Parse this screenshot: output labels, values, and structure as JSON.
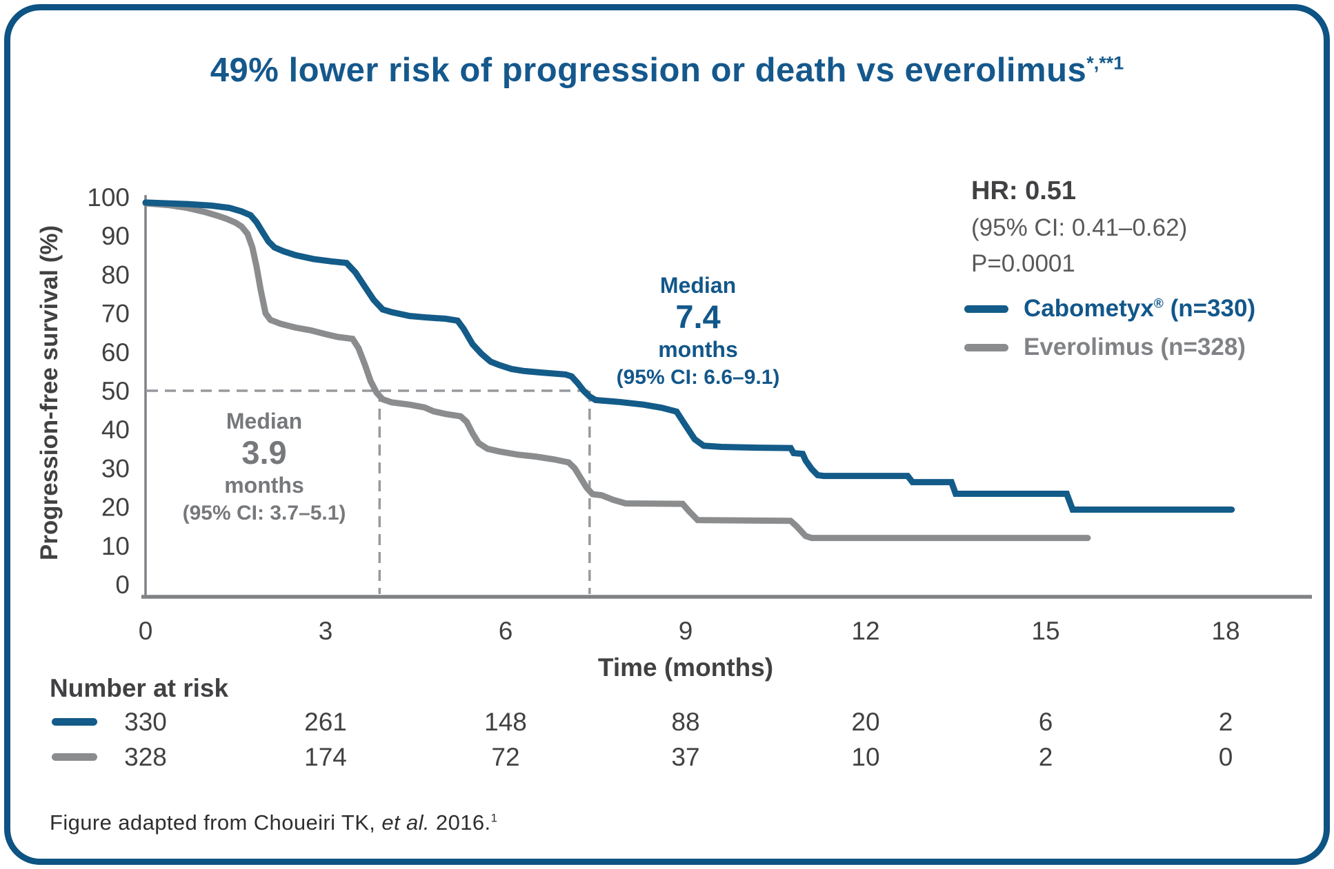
{
  "title": {
    "text": "49% lower risk of progression or death vs everolimus",
    "superscript": "*,**1"
  },
  "y_axis": {
    "label": "Progression-free survival (%)"
  },
  "x_axis": {
    "label": "Time (months)"
  },
  "stats": {
    "hr": "HR: 0.51",
    "ci": "(95% CI: 0.41–0.62)",
    "p": "P=0.0001"
  },
  "legend": {
    "cabometyx": {
      "name": "Cabometyx",
      "sup": "®",
      "suffix": " (n=330)"
    },
    "everolimus": {
      "name": "Everolimus (n=328)"
    }
  },
  "annotations": {
    "everolimus_median": {
      "line1": "Median",
      "value": "3.9",
      "line2": "months",
      "ci": "(95% CI: 3.7–5.1)"
    },
    "cabometyx_median": {
      "line1": "Median",
      "value": "7.4",
      "line2": "months",
      "ci": "(95% CI: 6.6–9.1)"
    }
  },
  "number_at_risk": {
    "heading": "Number at risk"
  },
  "footnote": {
    "pre": "Figure adapted from Choueiri TK, ",
    "italic": "et al.",
    "post": " 2016.",
    "sup": "1"
  },
  "colors": {
    "brand_blue": "#135b88",
    "border_blue": "#0d5383",
    "title_blue": "#15588c",
    "curve_gray": "#8a8c8e",
    "axis_gray": "#808285",
    "dash_gray": "#97999c",
    "text_dark": "#414042"
  },
  "chart_data": {
    "type": "line",
    "chart_kind": "kaplan-meier-survival",
    "title": "49% lower risk of progression or death vs everolimus*,**1",
    "xlabel": "Time (months)",
    "ylabel": "Progression-free survival (%)",
    "xlim": [
      0,
      18
    ],
    "ylim": [
      0,
      100
    ],
    "x_ticks": [
      0,
      3,
      6,
      9,
      12,
      15,
      18
    ],
    "y_ticks": [
      100,
      90,
      80,
      70,
      60,
      50,
      40,
      30,
      20,
      10,
      0
    ],
    "grid": false,
    "legend_position": "upper right",
    "hr": "0.51",
    "hr_ci": "0.41-0.62",
    "p_value": "0.0001",
    "median_reference_pct": 50,
    "series": [
      {
        "name": "Everolimus (n=328)",
        "color": "#8a8c8e",
        "median_months": 3.9,
        "median_ci": "3.7-5.1",
        "points": [
          [
            0,
            98.4
          ],
          [
            0.4,
            97.9
          ],
          [
            0.7,
            97.2
          ],
          [
            1.0,
            96.1
          ],
          [
            1.2,
            95.2
          ],
          [
            1.35,
            94.4
          ],
          [
            1.5,
            93.4
          ],
          [
            1.6,
            92.4
          ],
          [
            1.7,
            90.5
          ],
          [
            1.78,
            87.0
          ],
          [
            1.85,
            82.0
          ],
          [
            1.92,
            76.0
          ],
          [
            2.0,
            70.0
          ],
          [
            2.08,
            68.3
          ],
          [
            2.25,
            67.3
          ],
          [
            2.5,
            66.3
          ],
          [
            2.75,
            65.6
          ],
          [
            3.0,
            64.6
          ],
          [
            3.2,
            63.9
          ],
          [
            3.45,
            63.4
          ],
          [
            3.55,
            61.0
          ],
          [
            3.65,
            57.0
          ],
          [
            3.75,
            52.5
          ],
          [
            3.85,
            49.5
          ],
          [
            3.95,
            47.8
          ],
          [
            4.1,
            47.0
          ],
          [
            4.4,
            46.4
          ],
          [
            4.65,
            45.7
          ],
          [
            4.8,
            44.7
          ],
          [
            5.0,
            44.0
          ],
          [
            5.25,
            43.4
          ],
          [
            5.35,
            42.0
          ],
          [
            5.45,
            39.0
          ],
          [
            5.55,
            36.5
          ],
          [
            5.7,
            35.0
          ],
          [
            5.9,
            34.3
          ],
          [
            6.2,
            33.5
          ],
          [
            6.5,
            33.0
          ],
          [
            6.8,
            32.3
          ],
          [
            7.05,
            31.5
          ],
          [
            7.15,
            30.0
          ],
          [
            7.25,
            27.5
          ],
          [
            7.35,
            25.0
          ],
          [
            7.45,
            23.3
          ],
          [
            7.6,
            23.0
          ],
          [
            7.8,
            21.8
          ],
          [
            8.0,
            20.9
          ],
          [
            8.95,
            20.8
          ],
          [
            9.05,
            19.0
          ],
          [
            9.2,
            16.6
          ],
          [
            10.75,
            16.4
          ],
          [
            10.85,
            15.0
          ],
          [
            11.0,
            12.5
          ],
          [
            11.1,
            12.0
          ],
          [
            15.7,
            12.0
          ]
        ]
      },
      {
        "name": "Cabometyx (n=330)",
        "color": "#135b88",
        "median_months": 7.4,
        "median_ci": "6.6-9.1",
        "points": [
          [
            0,
            98.6
          ],
          [
            0.7,
            98.2
          ],
          [
            1.1,
            97.8
          ],
          [
            1.4,
            97.2
          ],
          [
            1.6,
            96.3
          ],
          [
            1.75,
            95.3
          ],
          [
            1.85,
            93.5
          ],
          [
            1.95,
            91.0
          ],
          [
            2.05,
            88.5
          ],
          [
            2.15,
            87.0
          ],
          [
            2.3,
            86.0
          ],
          [
            2.5,
            85.0
          ],
          [
            2.8,
            84.0
          ],
          [
            3.1,
            83.4
          ],
          [
            3.35,
            83.0
          ],
          [
            3.5,
            80.5
          ],
          [
            3.65,
            77.0
          ],
          [
            3.8,
            73.5
          ],
          [
            3.95,
            71.0
          ],
          [
            4.1,
            70.3
          ],
          [
            4.4,
            69.3
          ],
          [
            4.7,
            68.9
          ],
          [
            5.0,
            68.6
          ],
          [
            5.2,
            68.1
          ],
          [
            5.3,
            66.0
          ],
          [
            5.45,
            62.0
          ],
          [
            5.6,
            59.5
          ],
          [
            5.75,
            57.5
          ],
          [
            5.9,
            56.6
          ],
          [
            6.1,
            55.6
          ],
          [
            6.3,
            55.1
          ],
          [
            6.6,
            54.7
          ],
          [
            7.0,
            54.2
          ],
          [
            7.1,
            53.7
          ],
          [
            7.2,
            52.0
          ],
          [
            7.3,
            50.0
          ],
          [
            7.4,
            48.5
          ],
          [
            7.5,
            47.6
          ],
          [
            7.9,
            47.1
          ],
          [
            8.3,
            46.4
          ],
          [
            8.6,
            45.6
          ],
          [
            8.85,
            44.6
          ],
          [
            9.0,
            41.0
          ],
          [
            9.15,
            37.5
          ],
          [
            9.3,
            35.8
          ],
          [
            9.6,
            35.5
          ],
          [
            10.2,
            35.3
          ],
          [
            10.75,
            35.2
          ],
          [
            10.8,
            33.9
          ],
          [
            10.95,
            33.7
          ],
          [
            11.0,
            32.0
          ],
          [
            11.1,
            29.8
          ],
          [
            11.2,
            28.2
          ],
          [
            11.3,
            28.0
          ],
          [
            12.7,
            28.0
          ],
          [
            12.78,
            26.4
          ],
          [
            13.43,
            26.4
          ],
          [
            13.5,
            23.4
          ],
          [
            15.35,
            23.4
          ],
          [
            15.45,
            19.3
          ],
          [
            18.1,
            19.3
          ]
        ]
      }
    ],
    "number_at_risk": {
      "months": [
        0,
        3,
        6,
        9,
        12,
        15,
        18
      ],
      "rows": [
        {
          "series": "cabometyx",
          "color": "#135b88",
          "values": [
            "330",
            "261",
            "148",
            "88",
            "20",
            "6",
            "2"
          ]
        },
        {
          "series": "everolimus",
          "color": "#8a8c8e",
          "values": [
            "328",
            "174",
            "72",
            "37",
            "10",
            "2",
            "0"
          ]
        }
      ]
    }
  }
}
